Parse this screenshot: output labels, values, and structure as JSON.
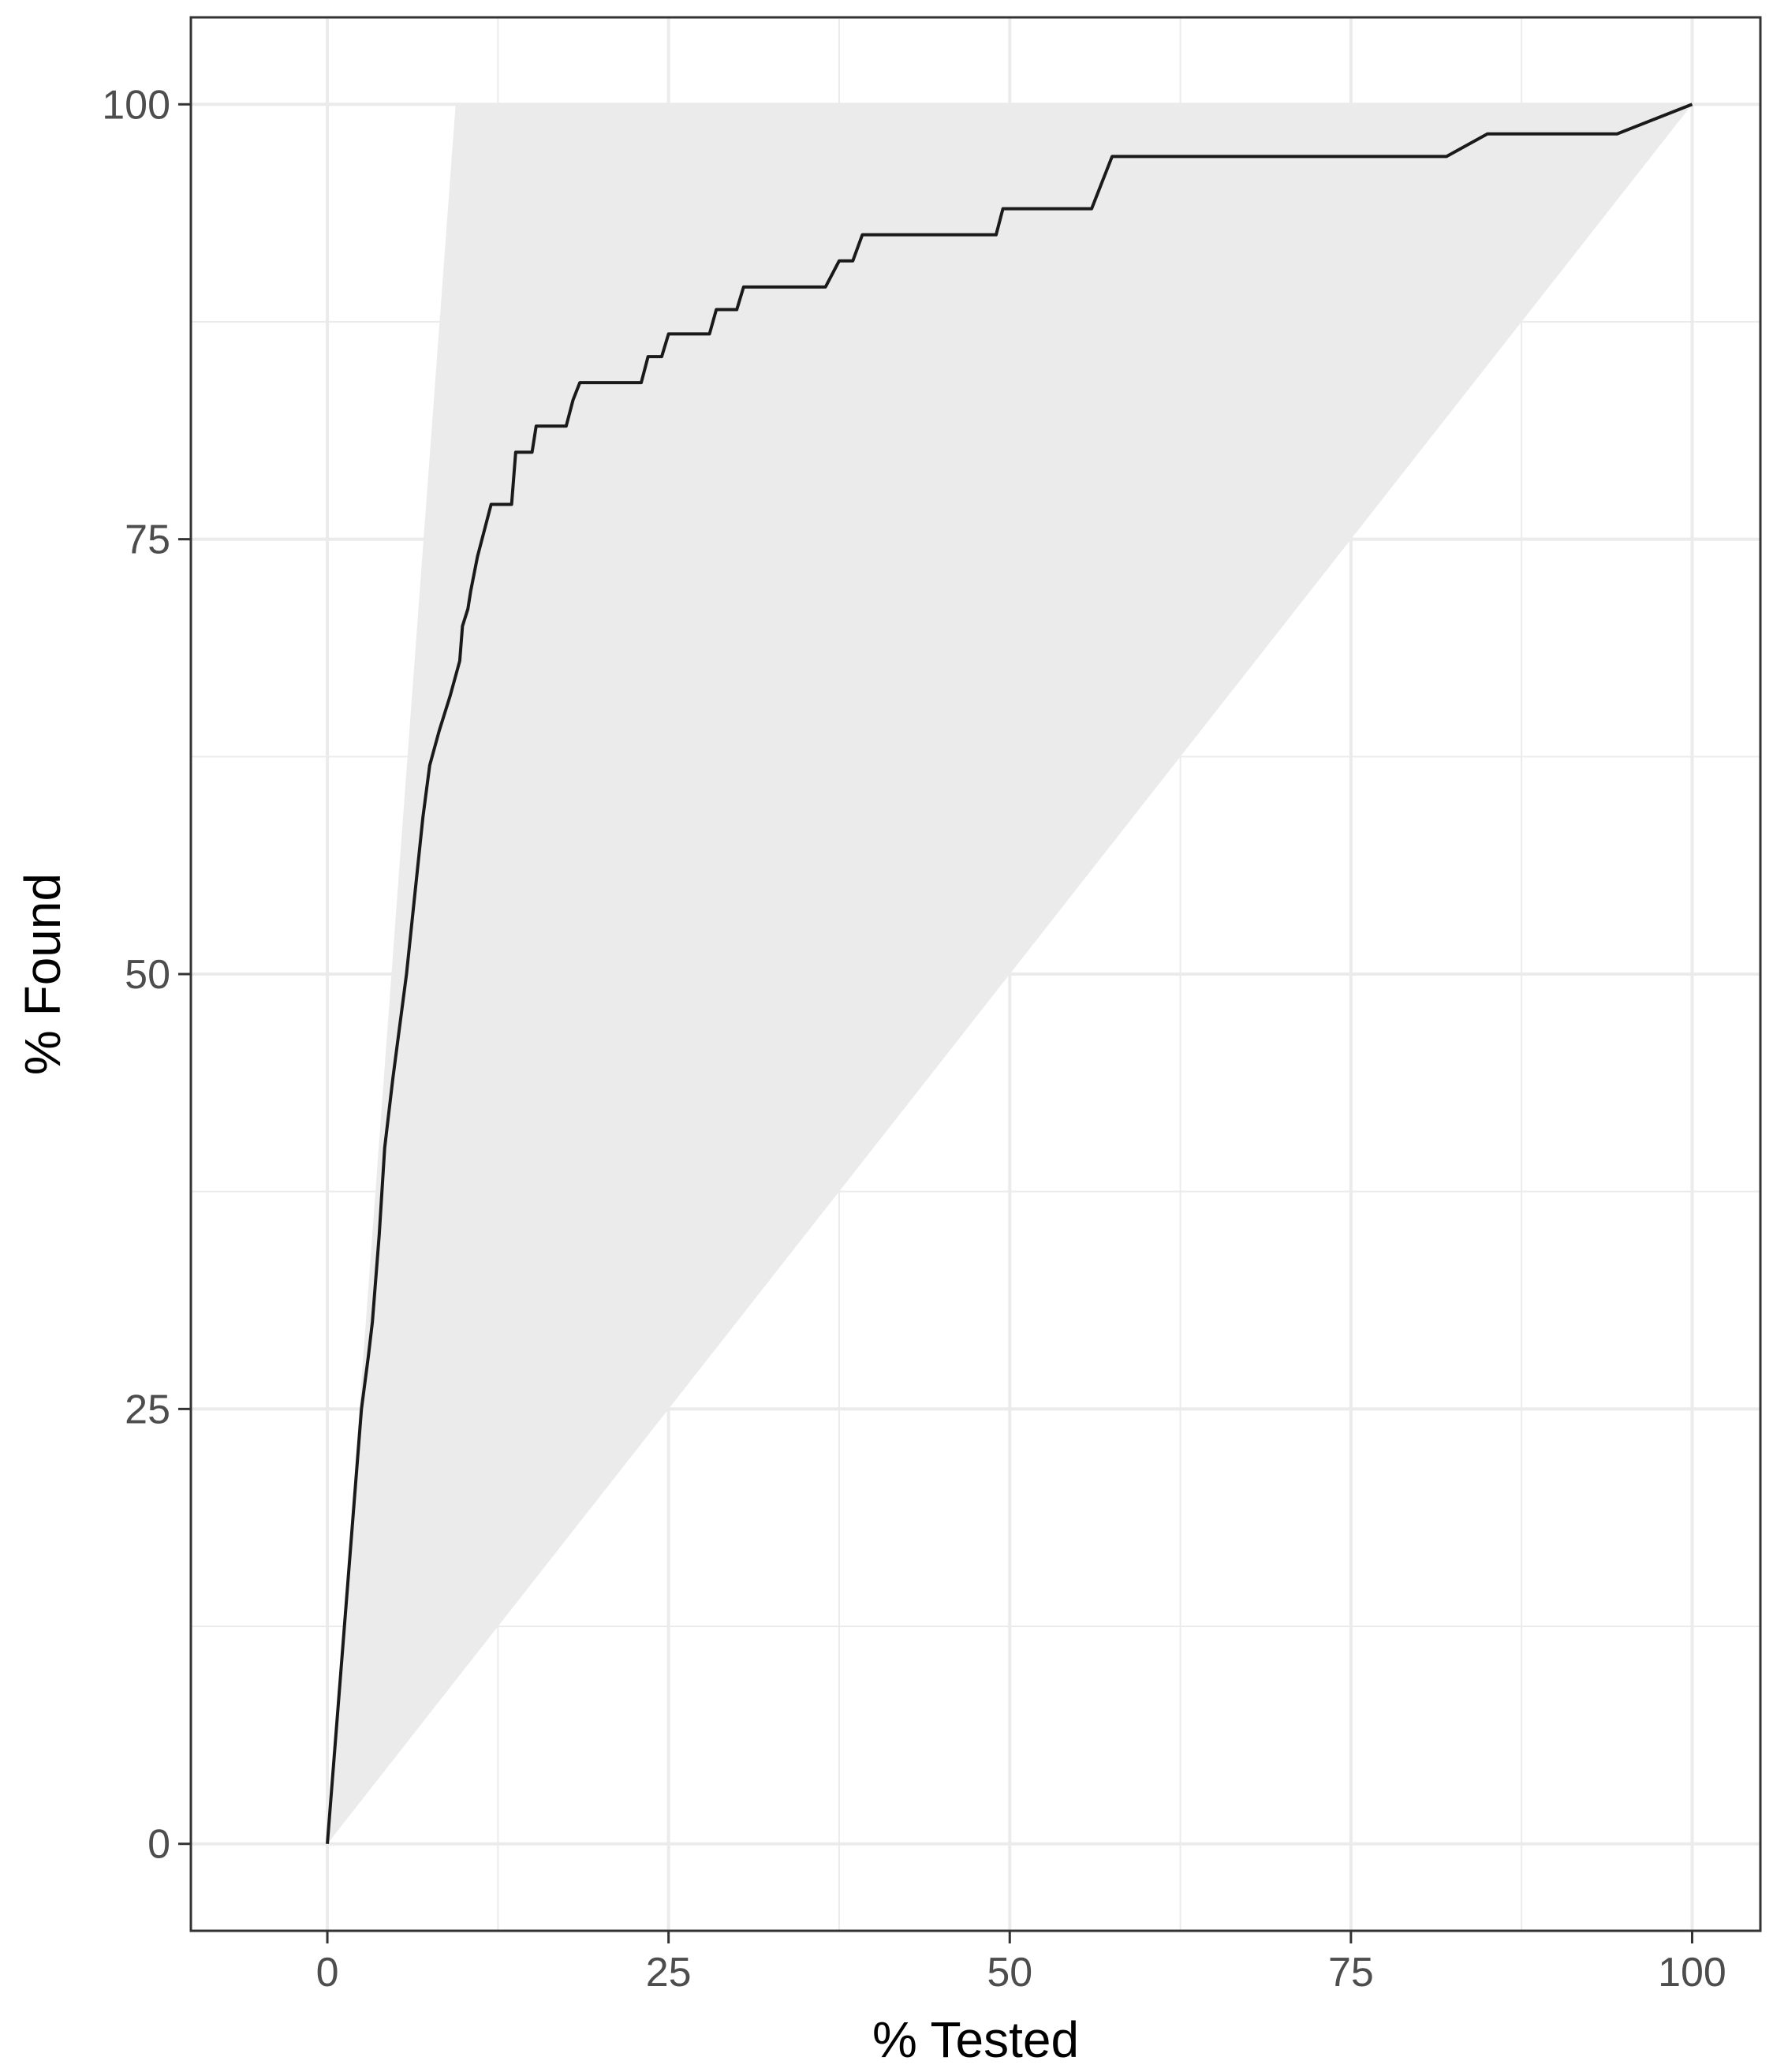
{
  "chart_data": {
    "type": "line",
    "xlabel": "% Tested",
    "ylabel": "% Found",
    "xlim": [
      -10,
      105
    ],
    "ylim": [
      -5,
      105
    ],
    "x_ticks": [
      0,
      25,
      50,
      75,
      100
    ],
    "y_ticks": [
      0,
      25,
      50,
      75,
      100
    ],
    "grid": true,
    "legend": "none",
    "colors": {
      "line": "#1a1a1a",
      "band": "#ebebeb",
      "grid": "#ebebeb",
      "panel_border": "#333333",
      "tick_label": "#4d4d4d"
    },
    "band": {
      "upper": [
        [
          0,
          0
        ],
        [
          9.4,
          100
        ],
        [
          100,
          100
        ]
      ],
      "lower": [
        [
          0,
          0
        ],
        [
          100,
          100
        ]
      ]
    },
    "series": [
      {
        "points": [
          [
            0,
            0
          ],
          [
            0.5,
            5
          ],
          [
            1,
            10
          ],
          [
            1.5,
            15
          ],
          [
            2,
            20
          ],
          [
            2.5,
            25
          ],
          [
            3,
            28
          ],
          [
            3.3,
            30
          ],
          [
            3.8,
            35
          ],
          [
            4.2,
            40
          ],
          [
            4.8,
            44
          ],
          [
            5.3,
            47
          ],
          [
            5.8,
            50
          ],
          [
            6.2,
            53
          ],
          [
            6.6,
            56
          ],
          [
            7,
            59
          ],
          [
            7.5,
            62
          ],
          [
            8.2,
            64
          ],
          [
            9,
            66
          ],
          [
            9.7,
            68
          ],
          [
            9.9,
            70
          ],
          [
            10.3,
            71
          ],
          [
            10.5,
            72
          ],
          [
            11,
            74
          ],
          [
            11.5,
            75.5
          ],
          [
            12,
            77
          ],
          [
            13.5,
            77
          ],
          [
            13.8,
            80
          ],
          [
            15,
            80
          ],
          [
            15.3,
            81.5
          ],
          [
            17.5,
            81.5
          ],
          [
            18,
            83
          ],
          [
            18.5,
            84
          ],
          [
            23,
            84
          ],
          [
            23.5,
            85.5
          ],
          [
            24.5,
            85.5
          ],
          [
            25,
            86.8
          ],
          [
            28,
            86.8
          ],
          [
            28.5,
            88.2
          ],
          [
            30,
            88.2
          ],
          [
            30.5,
            89.5
          ],
          [
            36.5,
            89.5
          ],
          [
            37.5,
            91
          ],
          [
            38.5,
            91
          ],
          [
            39.2,
            92.5
          ],
          [
            49,
            92.5
          ],
          [
            49.5,
            94
          ],
          [
            56,
            94
          ],
          [
            57.5,
            97
          ],
          [
            82,
            97
          ],
          [
            85,
            98.3
          ],
          [
            94.5,
            98.3
          ],
          [
            100,
            100
          ]
        ]
      }
    ]
  }
}
